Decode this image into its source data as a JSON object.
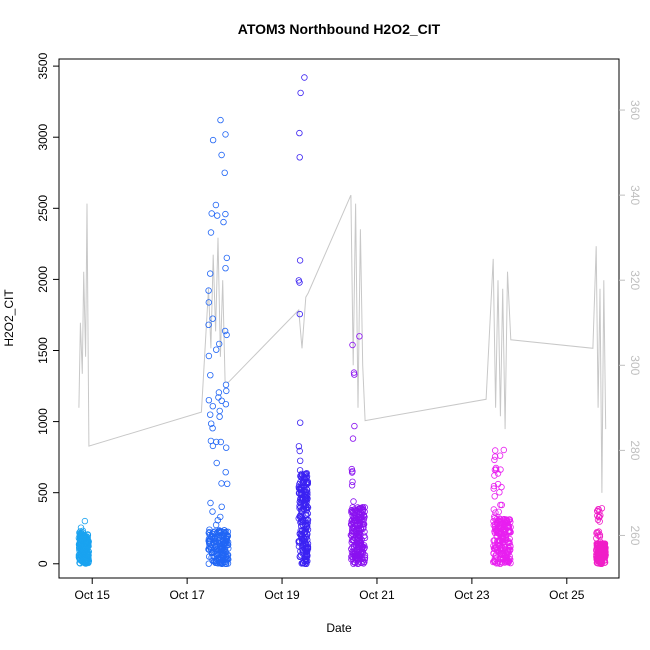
{
  "chart_data": {
    "type": "scatter",
    "title": "ATOM3 Northbound H2O2_CIT",
    "xlabel": "Date",
    "ylabel": "H2O2_CIT",
    "x_ticks": [
      "Oct 15",
      "Oct 17",
      "Oct 19",
      "Oct 21",
      "Oct 23",
      "Oct 25"
    ],
    "y_ticks": [
      "0",
      "500",
      "1000",
      "1500",
      "2000",
      "2500",
      "3000",
      "3500"
    ],
    "y2_ticks": [
      "260",
      "280",
      "300",
      "320",
      "340",
      "360"
    ],
    "ylim": [
      -100,
      3550
    ],
    "y2lim": [
      250,
      372
    ],
    "xlim_days": [
      14.3,
      26.1
    ],
    "colors": {
      "axis": "#000000",
      "secondary_axis": "#bfbfbf",
      "line": "#c8c8c8"
    },
    "flights": [
      {
        "start": 14.72,
        "end": 14.93,
        "peak": 300,
        "base": 130,
        "spike_end": 0.4,
        "color": "#1aa3f0"
      },
      {
        "start": 17.45,
        "end": 17.87,
        "peak": 3120,
        "base": 150,
        "spike_end": 0.95,
        "color": "#2166f5"
      },
      {
        "start": 19.35,
        "end": 19.55,
        "peak": 3420,
        "base": 400,
        "spike_end": 0.25,
        "color": "#3b22f2"
      },
      {
        "start": 20.45,
        "end": 20.75,
        "peak": 1600,
        "base": 250,
        "spike_end": 0.25,
        "color": "#8a12f0"
      },
      {
        "start": 23.45,
        "end": 23.82,
        "peak": 800,
        "base": 200,
        "spike_end": 0.5,
        "color": "#e81ff0"
      },
      {
        "start": 25.62,
        "end": 25.82,
        "peak": 390,
        "base": 90,
        "spike_end": 0.5,
        "color": "#f01fc8"
      }
    ],
    "line_series": [
      [
        14.72,
        290
      ],
      [
        14.75,
        310
      ],
      [
        14.79,
        298
      ],
      [
        14.82,
        322
      ],
      [
        14.86,
        302
      ],
      [
        14.89,
        338
      ],
      [
        14.93,
        281
      ],
      [
        17.3,
        289
      ],
      [
        17.45,
        318
      ],
      [
        17.5,
        304
      ],
      [
        17.55,
        326
      ],
      [
        17.6,
        308
      ],
      [
        17.65,
        330
      ],
      [
        17.7,
        302
      ],
      [
        17.75,
        320
      ],
      [
        17.8,
        296
      ],
      [
        17.87,
        296
      ],
      [
        19.35,
        313
      ],
      [
        19.42,
        304
      ],
      [
        19.5,
        316
      ],
      [
        19.55,
        317
      ],
      [
        20.45,
        340
      ],
      [
        20.5,
        300
      ],
      [
        20.55,
        338
      ],
      [
        20.6,
        290
      ],
      [
        20.65,
        332
      ],
      [
        20.7,
        300
      ],
      [
        20.75,
        287
      ],
      [
        23.3,
        292
      ],
      [
        23.45,
        325
      ],
      [
        23.5,
        290
      ],
      [
        23.55,
        320
      ],
      [
        23.6,
        288
      ],
      [
        23.65,
        318
      ],
      [
        23.7,
        285
      ],
      [
        23.75,
        322
      ],
      [
        23.82,
        306
      ],
      [
        25.55,
        304
      ],
      [
        25.62,
        328
      ],
      [
        25.66,
        290
      ],
      [
        25.7,
        318
      ],
      [
        25.74,
        270
      ],
      [
        25.78,
        320
      ],
      [
        25.82,
        285
      ]
    ]
  }
}
